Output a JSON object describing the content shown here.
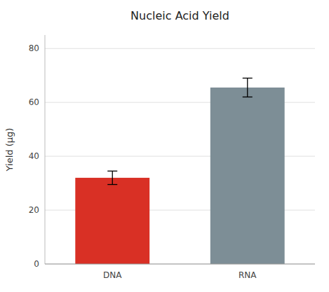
{
  "chart_data": {
    "type": "bar",
    "title": "Nucleic Acid Yield",
    "categories": [
      "DNA",
      "RNA"
    ],
    "values": [
      32.0,
      65.5
    ],
    "errors": [
      2.5,
      3.5
    ],
    "colors": [
      "#d93025",
      "#7d8e96"
    ],
    "ylabel": "Yield (µg)",
    "ylim": [
      0,
      85
    ],
    "yticks": [
      0,
      20,
      40,
      60,
      80
    ],
    "grid": true
  }
}
